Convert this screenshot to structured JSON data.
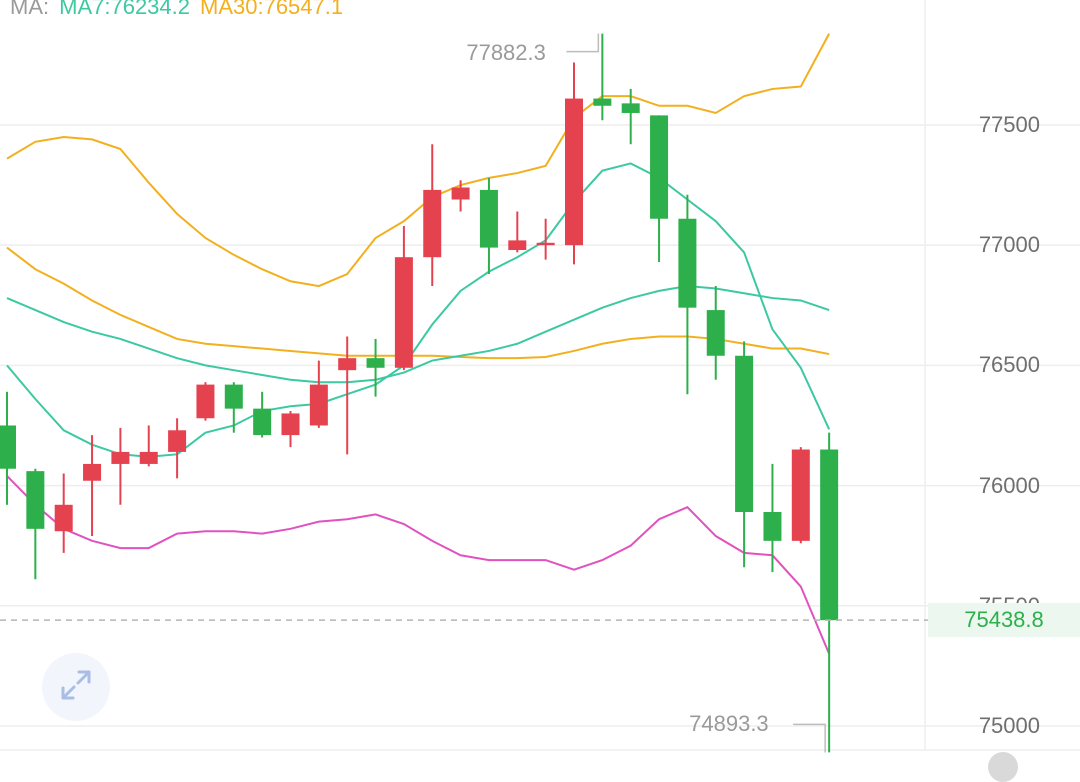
{
  "legend": {
    "prefix": "MA:",
    "ma7": "MA7:76234.2",
    "ma30": "MA30:76547.1",
    "prefix_color": "#9a9a9a",
    "ma7_color": "#3cc9a2",
    "ma30_color": "#f2b01e"
  },
  "y_axis": {
    "ticks": [
      "77500",
      "77000",
      "76500",
      "76000",
      "75500",
      "75000"
    ]
  },
  "current_price": {
    "label": "75438.8"
  },
  "extremes": {
    "high_label": "77882.3",
    "low_label": "74893.3"
  },
  "colors": {
    "up": "#e5424f",
    "down": "#2db04b",
    "ma7": "#3cc9a2",
    "ma30": "#f2b01e",
    "boll_band": "#f2b01e",
    "boll_mid": "#3cc9a2",
    "lower_band": "#e052c0",
    "grid": "#eeeeee"
  },
  "icons": {
    "expand": "expand-arrows-icon"
  },
  "chart_data": {
    "type": "candlestick",
    "ylim": [
      74850,
      78020
    ],
    "candles": [
      {
        "o": 76250,
        "h": 76390,
        "l": 75920,
        "c": 76070
      },
      {
        "o": 76060,
        "h": 76070,
        "l": 75610,
        "c": 75820
      },
      {
        "o": 75810,
        "h": 76050,
        "l": 75720,
        "c": 75920
      },
      {
        "o": 76020,
        "h": 76210,
        "l": 75790,
        "c": 76090
      },
      {
        "o": 76090,
        "h": 76240,
        "l": 75920,
        "c": 76140
      },
      {
        "o": 76090,
        "h": 76250,
        "l": 76080,
        "c": 76140
      },
      {
        "o": 76140,
        "h": 76280,
        "l": 76030,
        "c": 76230
      },
      {
        "o": 76280,
        "h": 76430,
        "l": 76270,
        "c": 76420
      },
      {
        "o": 76420,
        "h": 76430,
        "l": 76220,
        "c": 76320
      },
      {
        "o": 76320,
        "h": 76390,
        "l": 76200,
        "c": 76210
      },
      {
        "o": 76210,
        "h": 76310,
        "l": 76160,
        "c": 76300
      },
      {
        "o": 76250,
        "h": 76520,
        "l": 76240,
        "c": 76420
      },
      {
        "o": 76480,
        "h": 76620,
        "l": 76130,
        "c": 76530
      },
      {
        "o": 76530,
        "h": 76610,
        "l": 76370,
        "c": 76490
      },
      {
        "o": 76490,
        "h": 77080,
        "l": 76480,
        "c": 76950
      },
      {
        "o": 76950,
        "h": 77420,
        "l": 76830,
        "c": 77230
      },
      {
        "o": 77190,
        "h": 77270,
        "l": 77140,
        "c": 77240
      },
      {
        "o": 77230,
        "h": 77280,
        "l": 76880,
        "c": 76990
      },
      {
        "o": 76980,
        "h": 77140,
        "l": 76970,
        "c": 77020
      },
      {
        "o": 77000,
        "h": 77110,
        "l": 76940,
        "c": 77010
      },
      {
        "o": 77000,
        "h": 77760,
        "l": 76920,
        "c": 77610
      },
      {
        "o": 77610,
        "h": 77880,
        "l": 77520,
        "c": 77580
      },
      {
        "o": 77590,
        "h": 77650,
        "l": 77420,
        "c": 77550
      },
      {
        "o": 77540,
        "h": 77540,
        "l": 76930,
        "c": 77110
      },
      {
        "o": 77110,
        "h": 77210,
        "l": 76380,
        "c": 76740
      },
      {
        "o": 76730,
        "h": 76830,
        "l": 76440,
        "c": 76540
      },
      {
        "o": 76540,
        "h": 76600,
        "l": 75660,
        "c": 75890
      },
      {
        "o": 75890,
        "h": 76090,
        "l": 75640,
        "c": 75770
      },
      {
        "o": 75770,
        "h": 76160,
        "l": 75760,
        "c": 76150
      },
      {
        "o": 76150,
        "h": 76220,
        "l": 74890,
        "c": 75440
      }
    ],
    "boll_upper": [
      77360,
      77430,
      77450,
      77440,
      77400,
      77260,
      77130,
      77030,
      76960,
      76900,
      76850,
      76830,
      76880,
      77030,
      77100,
      77200,
      77250,
      77280,
      77300,
      77330,
      77530,
      77620,
      77620,
      77580,
      77580,
      77550,
      77620,
      77650,
      77660,
      77880
    ],
    "ma30_line": [
      76990,
      76900,
      76840,
      76770,
      76710,
      76660,
      76610,
      76590,
      76580,
      76570,
      76560,
      76550,
      76540,
      76540,
      76540,
      76540,
      76535,
      76530,
      76530,
      76535,
      76560,
      76590,
      76610,
      76620,
      76620,
      76610,
      76590,
      76570,
      76570,
      76547
    ],
    "ma7_upper": [
      76780,
      76730,
      76680,
      76640,
      76610,
      76570,
      76530,
      76500,
      76480,
      76460,
      76440,
      76430,
      76430,
      76440,
      76470,
      76520,
      76540,
      76560,
      76590,
      76640,
      76690,
      76740,
      76780,
      76810,
      76830,
      76820,
      76800,
      76780,
      76770,
      76730
    ],
    "ma7_line": [
      76500,
      76360,
      76230,
      76170,
      76130,
      76120,
      76130,
      76220,
      76250,
      76310,
      76330,
      76340,
      76380,
      76420,
      76500,
      76670,
      76810,
      76890,
      76950,
      77020,
      77180,
      77310,
      77340,
      77280,
      77190,
      77100,
      76970,
      76650,
      76490,
      76234
    ],
    "lower_band": [
      76040,
      75920,
      75820,
      75770,
      75740,
      75740,
      75800,
      75810,
      75810,
      75800,
      75820,
      75850,
      75860,
      75880,
      75840,
      75770,
      75710,
      75690,
      75690,
      75690,
      75650,
      75690,
      75750,
      75860,
      75910,
      75790,
      75720,
      75710,
      75580,
      75300
    ]
  }
}
